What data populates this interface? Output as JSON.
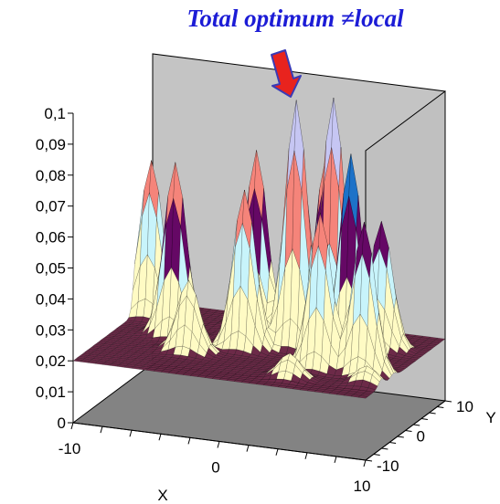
{
  "chart_data": {
    "type": "surface",
    "title": "Total optimum ≠local",
    "xlabel": "X",
    "ylabel": "Y",
    "zlabel": "",
    "xlim": [
      -10,
      10
    ],
    "ylim": [
      -10,
      10
    ],
    "zlim": [
      0,
      0.1
    ],
    "x_ticks": [
      "-10",
      "0",
      "10"
    ],
    "y_ticks": [
      "-10",
      "0",
      "10"
    ],
    "z_ticks": [
      "0",
      "0,01",
      "0,02",
      "0,03",
      "0,04",
      "0,05",
      "0,06",
      "0,07",
      "0,08",
      "0,09",
      "0,1"
    ],
    "baseline": 0.02,
    "color_bands": [
      {
        "from": 0.02,
        "to": 0.03,
        "color": "#fffbc4"
      },
      {
        "from": 0.03,
        "to": 0.04,
        "color": "#fffbc4"
      },
      {
        "from": 0.04,
        "to": 0.05,
        "color": "#c8f4fb"
      },
      {
        "from": 0.05,
        "to": 0.06,
        "color": "#650865"
      },
      {
        "from": 0.06,
        "to": 0.07,
        "color": "#f5847a"
      },
      {
        "from": 0.07,
        "to": 0.08,
        "color": "#1d72c8"
      },
      {
        "from": 0.08,
        "to": 0.09,
        "color": "#c6c6f3"
      },
      {
        "from": 0.09,
        "to": 0.095,
        "color": "#0c1b6e"
      },
      {
        "from": 0.095,
        "to": 0.1,
        "color": "#e833d2"
      }
    ],
    "peaks": [
      {
        "x": -9,
        "y": 6,
        "z": 0.07
      },
      {
        "x": -6,
        "y": 1,
        "z": 0.076
      },
      {
        "x": -2,
        "y": 6,
        "z": 0.066
      },
      {
        "x": -1,
        "y": 0,
        "z": 0.071
      },
      {
        "x": -1,
        "y": 3,
        "z": 0.081
      },
      {
        "x": 2,
        "y": 2,
        "z": 0.1
      },
      {
        "x": 3,
        "y": 6,
        "z": 0.079
      },
      {
        "x": 4,
        "y": 4,
        "z": 0.1
      },
      {
        "x": 5,
        "y": -3,
        "z": 0.07
      },
      {
        "x": 6,
        "y": 1,
        "z": 0.086
      },
      {
        "x": 7,
        "y": 5,
        "z": 0.061
      },
      {
        "x": 8,
        "y": -3,
        "z": 0.069
      },
      {
        "x": -4,
        "y": -3,
        "z": 0.043
      },
      {
        "x": 4,
        "y": -7,
        "z": 0.028
      },
      {
        "x": 9,
        "y": -6,
        "z": 0.026
      }
    ],
    "grid": true
  },
  "colors": {
    "title": "#1c1cd6",
    "arrow_fill": "#e8231e",
    "arrow_stroke": "#3a3ab6",
    "back_wall": "#c4c4c4",
    "side_wall": "#c0c0c0",
    "floor": "#838383",
    "base_plane": "#6c2a48",
    "mesh_line": "#000000"
  },
  "annotation": {
    "arrow_icon": "down-arrow-icon"
  }
}
